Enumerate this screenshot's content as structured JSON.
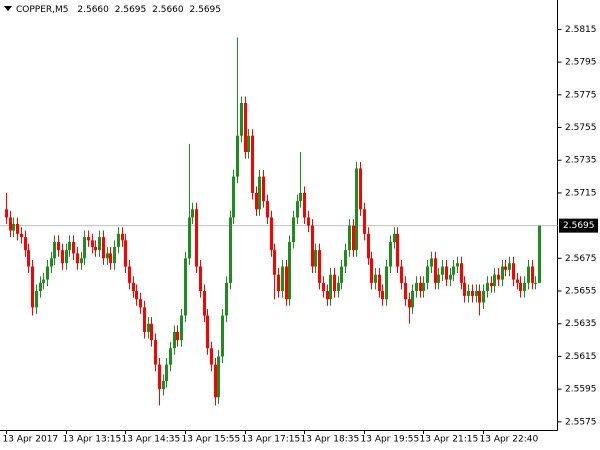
{
  "chart_data": {
    "type": "candlestick",
    "symbol": "COPPER,M5",
    "header_values": [
      "2.5660",
      "2.5695",
      "2.5660",
      "2.5695"
    ],
    "categories": [
      "13 Apr 2017",
      null,
      null,
      null,
      null,
      null,
      null,
      null,
      null,
      null,
      null,
      null,
      null,
      null,
      null,
      null,
      "13 Apr 13:15",
      null,
      null,
      null,
      null,
      null,
      null,
      null,
      null,
      null,
      null,
      null,
      null,
      null,
      null,
      null,
      "13 Apr 14:35",
      null,
      null,
      null,
      null,
      null,
      null,
      null,
      null,
      null,
      null,
      null,
      null,
      null,
      null,
      null,
      "13 Apr 15:55",
      null,
      null,
      null,
      null,
      null,
      null,
      null,
      null,
      null,
      null,
      null,
      null,
      null,
      null,
      null,
      "13 Apr 17:15",
      null,
      null,
      null,
      null,
      null,
      null,
      null,
      null,
      null,
      null,
      null,
      null,
      null,
      null,
      null,
      "13 Apr 18:35",
      null,
      null,
      null,
      null,
      null,
      null,
      null,
      null,
      null,
      null,
      null,
      null,
      null,
      null,
      null,
      "13 Apr 19:55",
      null,
      null,
      null,
      null,
      null,
      null,
      null,
      null,
      null,
      null,
      null,
      null,
      null,
      null,
      null,
      "13 Apr 21:15",
      null,
      null,
      null,
      null,
      null,
      null,
      null,
      null,
      null,
      null,
      null,
      null,
      null,
      null,
      null,
      "13 Apr 22:40",
      null,
      null,
      null,
      null,
      null,
      null,
      null,
      null,
      null,
      null,
      null,
      null,
      null,
      null,
      null
    ],
    "open": [
      2.5705,
      2.57,
      2.5692,
      2.5696,
      2.569,
      2.5688,
      2.568,
      2.567,
      2.5645,
      2.5655,
      2.566,
      2.5662,
      2.567,
      2.5675,
      2.5685,
      2.568,
      2.5672,
      2.568,
      2.5685,
      2.5678,
      2.5672,
      2.5675,
      2.5688,
      2.5686,
      2.5682,
      2.568,
      2.5688,
      2.5675,
      2.5678,
      2.5672,
      2.5682,
      2.569,
      2.5686,
      2.567,
      2.566,
      2.5655,
      2.565,
      2.5645,
      2.563,
      2.5635,
      2.5625,
      2.561,
      2.5595,
      2.56,
      2.561,
      2.562,
      2.563,
      2.5625,
      2.564,
      2.5675,
      2.57,
      2.5705,
      2.567,
      2.5655,
      2.564,
      2.562,
      2.561,
      2.559,
      2.5615,
      2.564,
      2.566,
      2.57,
      2.5725,
      2.575,
      2.577,
      2.574,
      2.575,
      2.5715,
      2.5705,
      2.5725,
      2.571,
      2.57,
      2.568,
      2.5665,
      2.5655,
      2.567,
      2.565,
      2.5685,
      2.57,
      2.571,
      2.5715,
      2.57,
      2.5695,
      2.567,
      2.568,
      2.566,
      2.5655,
      2.565,
      2.5665,
      2.5655,
      2.566,
      2.567,
      2.568,
      2.5695,
      2.568,
      2.573,
      2.5705,
      2.569,
      2.5675,
      2.566,
      2.5665,
      2.5655,
      2.565,
      2.567,
      2.5685,
      2.569,
      2.567,
      2.566,
      2.565,
      2.5645,
      2.5655,
      2.566,
      2.5655,
      2.566,
      2.567,
      2.5675,
      2.566,
      2.5665,
      2.567,
      2.5662,
      2.5665,
      2.567,
      2.5672,
      2.566,
      2.5652,
      2.5655,
      2.5652,
      2.5655,
      2.5648,
      2.5655,
      2.566,
      2.5658,
      2.5665,
      2.5662,
      2.567,
      2.5668,
      2.5672,
      2.5662,
      2.566,
      2.5655,
      2.566,
      2.567,
      2.566,
      2.566
    ],
    "high": [
      2.5715,
      2.5704,
      2.57,
      2.57,
      2.5694,
      2.5692,
      2.5684,
      2.5674,
      2.5659,
      2.5664,
      2.5666,
      2.5674,
      2.5679,
      2.5689,
      2.5689,
      2.5684,
      2.5684,
      2.5689,
      2.5689,
      2.5682,
      2.5679,
      2.5692,
      2.5692,
      2.569,
      2.5686,
      2.5692,
      2.5692,
      2.5682,
      2.5682,
      2.5686,
      2.5694,
      2.5694,
      2.569,
      2.5674,
      2.5664,
      2.5659,
      2.5654,
      2.5649,
      2.5639,
      2.5639,
      2.5629,
      2.5614,
      2.5604,
      2.5614,
      2.5624,
      2.5634,
      2.5634,
      2.5644,
      2.5679,
      2.5745,
      2.5709,
      2.5709,
      2.5674,
      2.5659,
      2.5644,
      2.5624,
      2.5614,
      2.5619,
      2.5644,
      2.5664,
      2.5704,
      2.5729,
      2.581,
      2.5774,
      2.5774,
      2.5754,
      2.5754,
      2.5719,
      2.5729,
      2.5729,
      2.5714,
      2.5704,
      2.5684,
      2.5669,
      2.5674,
      2.5674,
      2.5689,
      2.5704,
      2.5714,
      2.574,
      2.5719,
      2.5704,
      2.5699,
      2.5684,
      2.5684,
      2.5664,
      2.5659,
      2.5669,
      2.5669,
      2.5664,
      2.5674,
      2.5684,
      2.5699,
      2.5699,
      2.5734,
      2.5734,
      2.5709,
      2.5694,
      2.5679,
      2.5669,
      2.5669,
      2.5659,
      2.5674,
      2.5689,
      2.5694,
      2.5694,
      2.5674,
      2.5664,
      2.5654,
      2.5659,
      2.5664,
      2.5664,
      2.5664,
      2.5674,
      2.5679,
      2.5679,
      2.5669,
      2.5674,
      2.5674,
      2.5669,
      2.5674,
      2.5676,
      2.5676,
      2.5664,
      2.5659,
      2.5659,
      2.5659,
      2.5659,
      2.5659,
      2.5664,
      2.5664,
      2.5669,
      2.5669,
      2.5674,
      2.5674,
      2.5676,
      2.5676,
      2.5666,
      2.5664,
      2.5664,
      2.5674,
      2.5674,
      2.5664,
      2.5695
    ],
    "low": [
      2.5696,
      2.5688,
      2.5688,
      2.5686,
      2.5684,
      2.5676,
      2.5666,
      2.564,
      2.5641,
      2.5651,
      2.5656,
      2.5658,
      2.5666,
      2.5671,
      2.5676,
      2.5668,
      2.5668,
      2.5676,
      2.5674,
      2.5668,
      2.5668,
      2.5671,
      2.5682,
      2.5678,
      2.5676,
      2.5676,
      2.5671,
      2.5671,
      2.5668,
      2.5668,
      2.5678,
      2.5682,
      2.5666,
      2.5656,
      2.5651,
      2.5646,
      2.5641,
      2.5626,
      2.5626,
      2.5621,
      2.5606,
      2.5585,
      2.5591,
      2.5596,
      2.5606,
      2.5616,
      2.5621,
      2.5621,
      2.5636,
      2.5671,
      2.5696,
      2.5666,
      2.5651,
      2.5636,
      2.5616,
      2.5606,
      2.5585,
      2.5586,
      2.5611,
      2.5636,
      2.5656,
      2.5696,
      2.5721,
      2.5746,
      2.5736,
      2.5736,
      2.5711,
      2.5701,
      2.5701,
      2.5706,
      2.5696,
      2.5676,
      2.565,
      2.5651,
      2.5651,
      2.5646,
      2.5646,
      2.5681,
      2.5696,
      2.5706,
      2.5696,
      2.5691,
      2.5666,
      2.5666,
      2.5656,
      2.5651,
      2.5646,
      2.5646,
      2.5651,
      2.5651,
      2.5656,
      2.5666,
      2.5676,
      2.5676,
      2.5676,
      2.5701,
      2.5686,
      2.5671,
      2.5656,
      2.5656,
      2.5651,
      2.5646,
      2.5646,
      2.5666,
      2.5681,
      2.5666,
      2.5656,
      2.5646,
      2.5635,
      2.5641,
      2.5651,
      2.5651,
      2.5651,
      2.5656,
      2.5666,
      2.5656,
      2.5656,
      2.5661,
      2.5658,
      2.5658,
      2.5661,
      2.5666,
      2.5656,
      2.5648,
      2.5648,
      2.5648,
      2.5648,
      2.564,
      2.5644,
      2.5651,
      2.5654,
      2.5654,
      2.5658,
      2.5658,
      2.5664,
      2.5664,
      2.5658,
      2.5656,
      2.5651,
      2.5651,
      2.5656,
      2.5656,
      2.5656,
      2.566
    ],
    "close": [
      2.57,
      2.5692,
      2.5696,
      2.569,
      2.5688,
      2.568,
      2.567,
      2.5645,
      2.5655,
      2.566,
      2.5662,
      2.567,
      2.5675,
      2.5685,
      2.568,
      2.5672,
      2.568,
      2.5685,
      2.5678,
      2.5672,
      2.5675,
      2.5688,
      2.5686,
      2.5682,
      2.568,
      2.5688,
      2.5675,
      2.5678,
      2.5672,
      2.5682,
      2.569,
      2.5686,
      2.567,
      2.566,
      2.5655,
      2.565,
      2.5645,
      2.563,
      2.5635,
      2.5625,
      2.561,
      2.5595,
      2.56,
      2.561,
      2.562,
      2.563,
      2.5625,
      2.564,
      2.5675,
      2.57,
      2.5705,
      2.567,
      2.5655,
      2.564,
      2.562,
      2.561,
      2.559,
      2.5615,
      2.564,
      2.566,
      2.57,
      2.5725,
      2.575,
      2.577,
      2.574,
      2.575,
      2.5715,
      2.5705,
      2.5725,
      2.571,
      2.57,
      2.568,
      2.5665,
      2.5655,
      2.567,
      2.565,
      2.5685,
      2.57,
      2.571,
      2.5715,
      2.57,
      2.5695,
      2.567,
      2.568,
      2.566,
      2.5655,
      2.565,
      2.5665,
      2.5655,
      2.566,
      2.567,
      2.568,
      2.5695,
      2.568,
      2.573,
      2.5705,
      2.569,
      2.5675,
      2.566,
      2.5665,
      2.5655,
      2.565,
      2.567,
      2.5685,
      2.569,
      2.567,
      2.566,
      2.565,
      2.5645,
      2.5655,
      2.566,
      2.5655,
      2.566,
      2.567,
      2.5675,
      2.566,
      2.5665,
      2.567,
      2.5662,
      2.5665,
      2.567,
      2.5672,
      2.566,
      2.5652,
      2.5655,
      2.5652,
      2.5655,
      2.5648,
      2.5655,
      2.566,
      2.5658,
      2.5665,
      2.5662,
      2.567,
      2.5668,
      2.5672,
      2.5662,
      2.566,
      2.5655,
      2.566,
      2.567,
      2.566,
      2.566,
      2.5695
    ],
    "up_color": "#1e8c1e",
    "down_color": "#ff0000",
    "current_price": 2.5695,
    "ylim": [
      2.557,
      2.5833
    ],
    "yticks": [
      2.5815,
      2.5795,
      2.5775,
      2.5755,
      2.5735,
      2.5715,
      2.5675,
      2.5655,
      2.5635,
      2.5615,
      2.5595,
      2.5575
    ]
  }
}
